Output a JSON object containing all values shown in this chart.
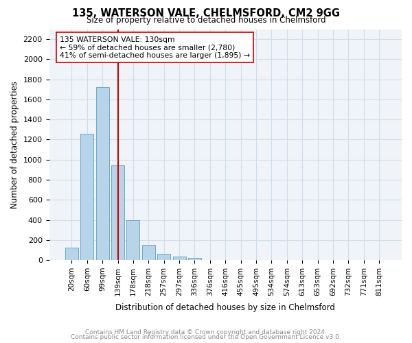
{
  "title": "135, WATERSON VALE, CHELMSFORD, CM2 9GG",
  "subtitle": "Size of property relative to detached houses in Chelmsford",
  "bar_labels": [
    "20sqm",
    "60sqm",
    "99sqm",
    "139sqm",
    "178sqm",
    "218sqm",
    "257sqm",
    "297sqm",
    "336sqm",
    "376sqm",
    "416sqm",
    "455sqm",
    "495sqm",
    "534sqm",
    "574sqm",
    "613sqm",
    "653sqm",
    "692sqm",
    "732sqm",
    "771sqm",
    "811sqm"
  ],
  "bar_values": [
    120,
    1260,
    1720,
    940,
    400,
    150,
    65,
    35,
    20,
    0,
    0,
    0,
    0,
    0,
    0,
    0,
    0,
    0,
    0,
    0,
    0
  ],
  "bar_color": "#b8d4e8",
  "bar_edge_color": "#6aaad4",
  "vline_x": 3,
  "vline_color": "#cc0000",
  "ylim": [
    0,
    2300
  ],
  "yticks": [
    0,
    200,
    400,
    600,
    800,
    1000,
    1200,
    1400,
    1600,
    1800,
    2000,
    2200
  ],
  "ylabel": "Number of detached properties",
  "xlabel": "Distribution of detached houses by size in Chelmsford",
  "annotation_title": "135 WATERSON VALE: 130sqm",
  "annotation_line1": "← 59% of detached houses are smaller (2,780)",
  "annotation_line2": "41% of semi-detached houses are larger (1,895) →",
  "annotation_box_color": "#ffffff",
  "annotation_box_edge": "#cc0000",
  "footer_line1": "Contains HM Land Registry data © Crown copyright and database right 2024.",
  "footer_line2": "Contains public sector information licensed under the Open Government Licence v3.0.",
  "grid_color": "#d0dde8",
  "background_color": "#f0f4f8"
}
